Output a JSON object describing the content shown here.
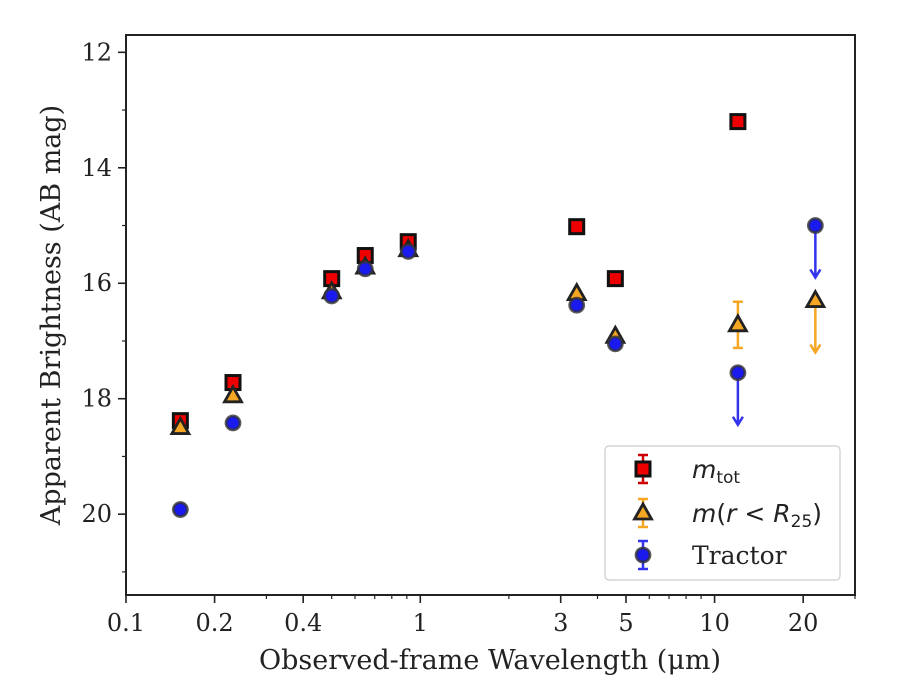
{
  "chart_data": {
    "type": "scatter",
    "xlabel": "Observed-frame Wavelength (μm)",
    "ylabel": "Apparent Brightness (AB mag)",
    "xscale": "log",
    "xlim": [
      0.1,
      30
    ],
    "ylim": [
      21.4,
      11.7
    ],
    "y_inverted": true,
    "x_ticks": [
      {
        "value": 0.1,
        "label": "0.1"
      },
      {
        "value": 0.2,
        "label": "0.2"
      },
      {
        "value": 0.4,
        "label": "0.4"
      },
      {
        "value": 1,
        "label": "1"
      },
      {
        "value": 3,
        "label": "3"
      },
      {
        "value": 5,
        "label": "5"
      },
      {
        "value": 10,
        "label": "10"
      },
      {
        "value": 20,
        "label": "20"
      }
    ],
    "y_ticks": [
      {
        "value": 12,
        "label": "12"
      },
      {
        "value": 14,
        "label": "14"
      },
      {
        "value": 16,
        "label": "16"
      },
      {
        "value": 18,
        "label": "18"
      },
      {
        "value": 20,
        "label": "20"
      }
    ],
    "grid": false,
    "legend_position": "lower-right",
    "series": [
      {
        "name": "m_tot",
        "marker": "square",
        "fill": "#ee0000",
        "error_color": "#cc0000",
        "points": [
          {
            "x": 0.153,
            "y": 18.38
          },
          {
            "x": 0.231,
            "y": 17.72
          },
          {
            "x": 0.5,
            "y": 15.92
          },
          {
            "x": 0.65,
            "y": 15.52
          },
          {
            "x": 0.91,
            "y": 15.28
          },
          {
            "x": 3.4,
            "y": 15.02
          },
          {
            "x": 4.6,
            "y": 15.92
          },
          {
            "x": 12.0,
            "y": 13.2
          }
        ]
      },
      {
        "name": "m(r<R25)",
        "marker": "triangle",
        "fill": "#f5a623",
        "error_color": "#f5a623",
        "points": [
          {
            "x": 0.153,
            "y": 18.5
          },
          {
            "x": 0.231,
            "y": 17.95
          },
          {
            "x": 0.5,
            "y": 16.15
          },
          {
            "x": 0.65,
            "y": 15.72
          },
          {
            "x": 0.91,
            "y": 15.42
          },
          {
            "x": 3.4,
            "y": 16.18
          },
          {
            "x": 4.6,
            "y": 16.92
          },
          {
            "x": 12.0,
            "y": 16.72,
            "err": 0.4
          },
          {
            "x": 22.0,
            "y": 16.3,
            "upper_limit": true
          }
        ]
      },
      {
        "name": "Tractor",
        "marker": "circle",
        "fill": "#1a1aee",
        "error_color": "#3333ee",
        "points": [
          {
            "x": 0.153,
            "y": 19.92
          },
          {
            "x": 0.231,
            "y": 18.42
          },
          {
            "x": 0.5,
            "y": 16.22
          },
          {
            "x": 0.65,
            "y": 15.75
          },
          {
            "x": 0.91,
            "y": 15.45
          },
          {
            "x": 3.4,
            "y": 16.38
          },
          {
            "x": 4.6,
            "y": 17.05
          },
          {
            "x": 12.0,
            "y": 17.55,
            "upper_limit": true
          },
          {
            "x": 22.0,
            "y": 15.0,
            "upper_limit": true
          }
        ]
      }
    ]
  }
}
